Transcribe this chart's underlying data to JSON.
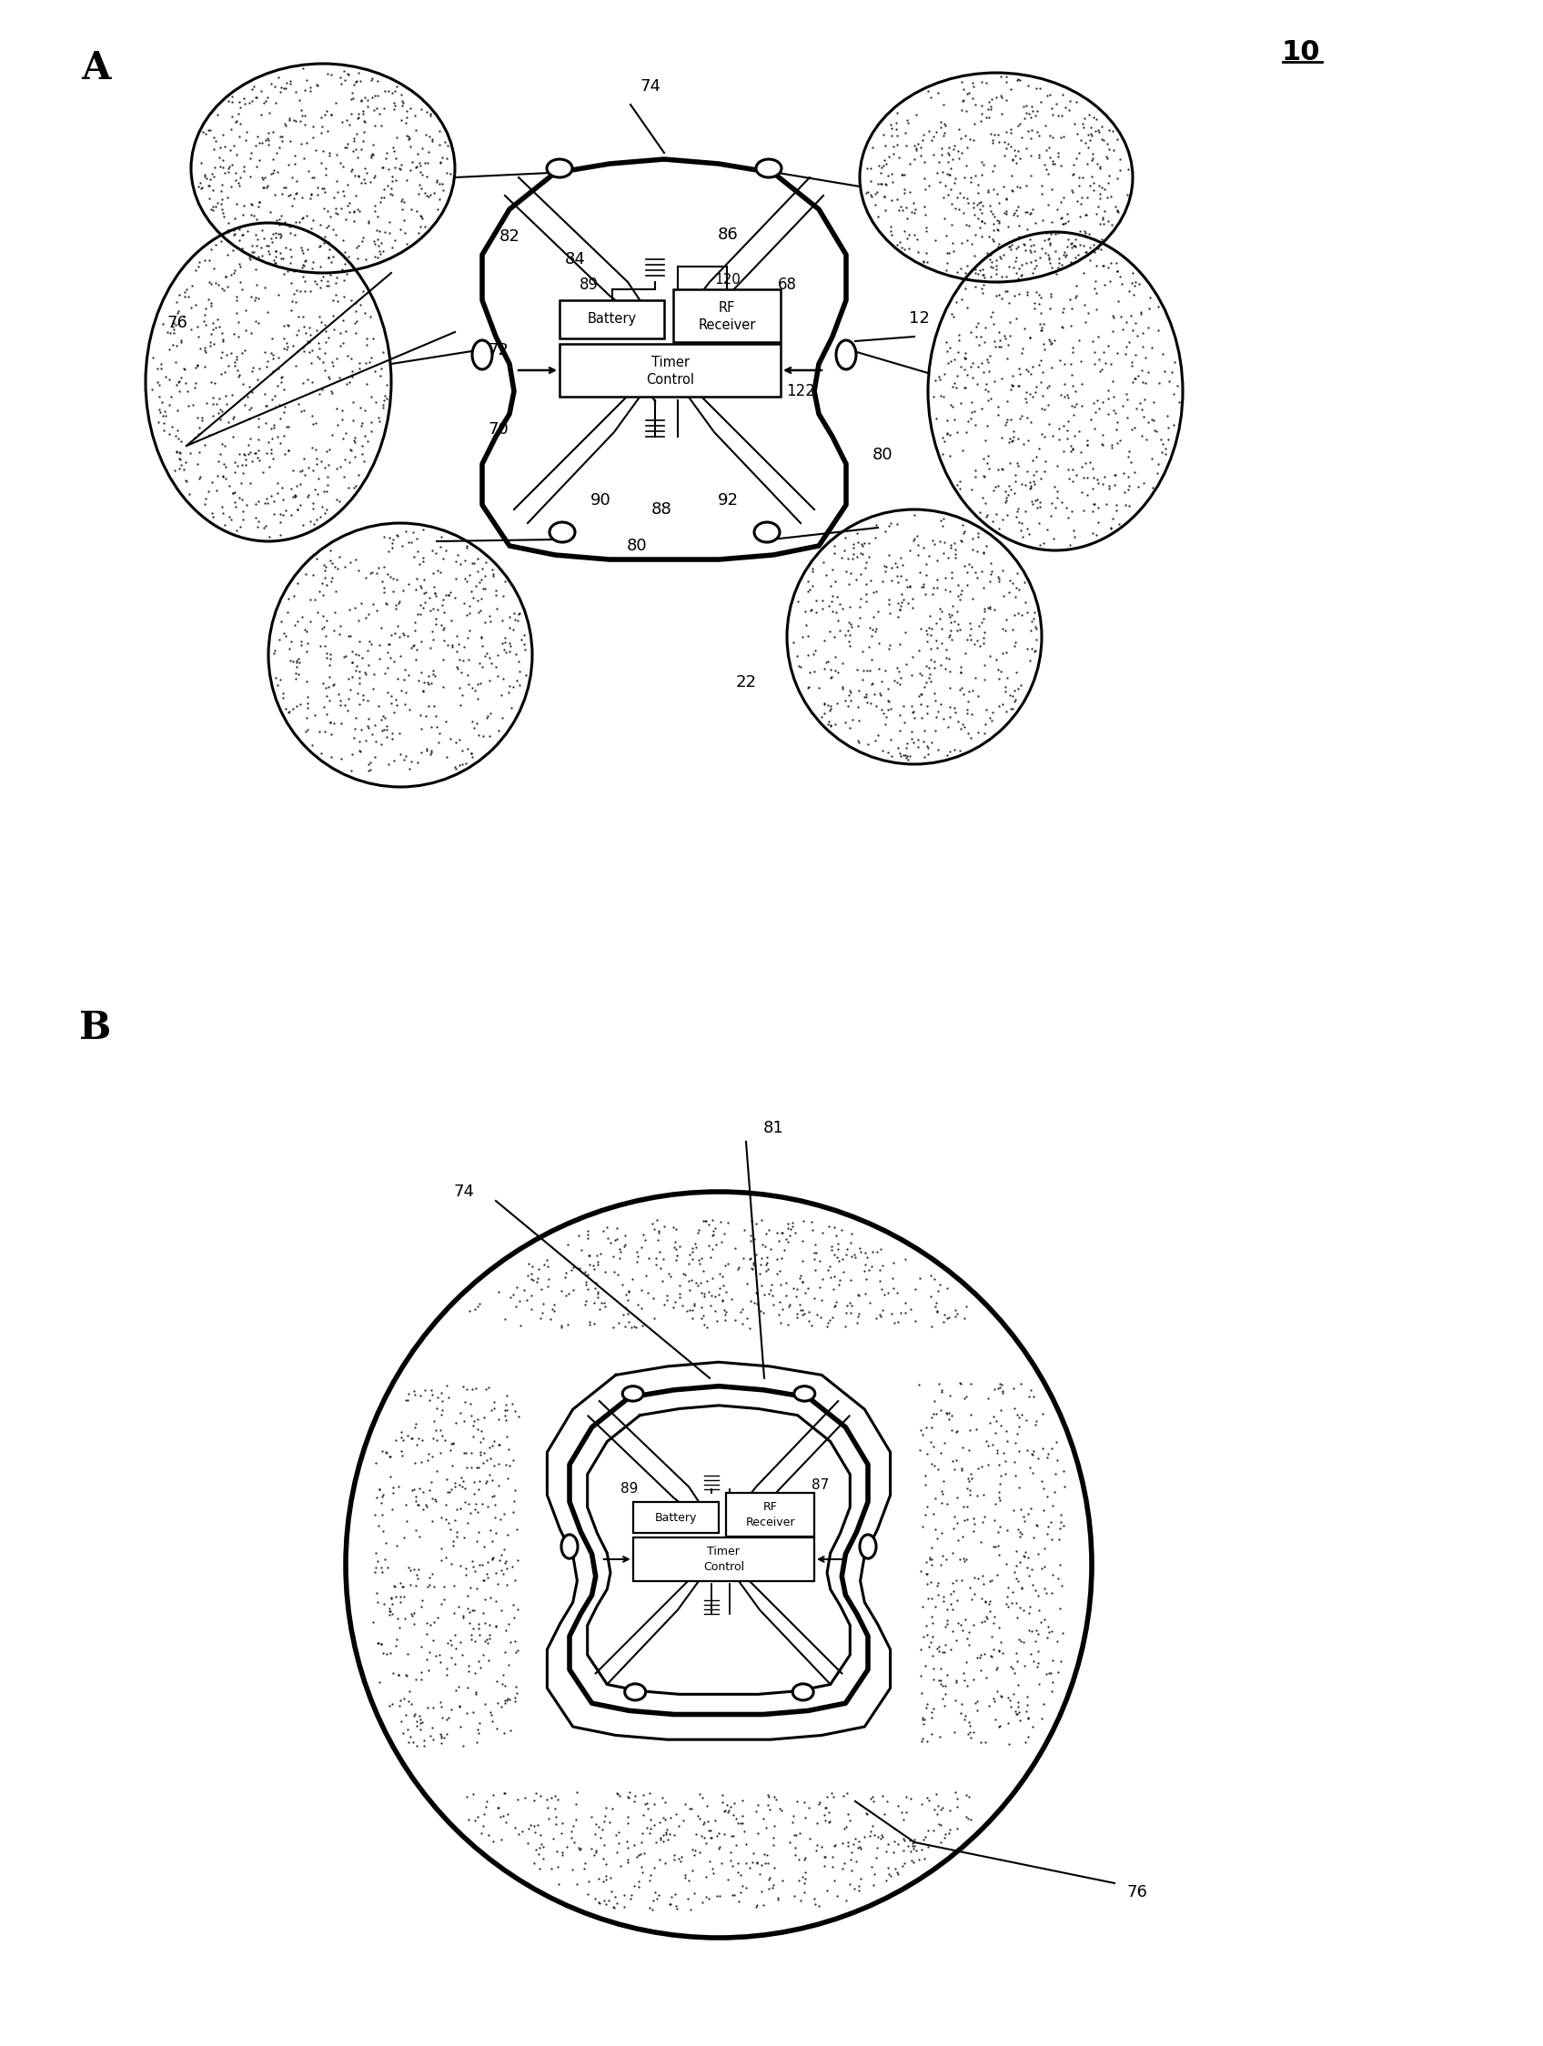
{
  "bg_color": "#ffffff",
  "fig_width": 16.96,
  "fig_height": 22.49,
  "label_A": "A",
  "label_B": "B",
  "label_10": "10"
}
